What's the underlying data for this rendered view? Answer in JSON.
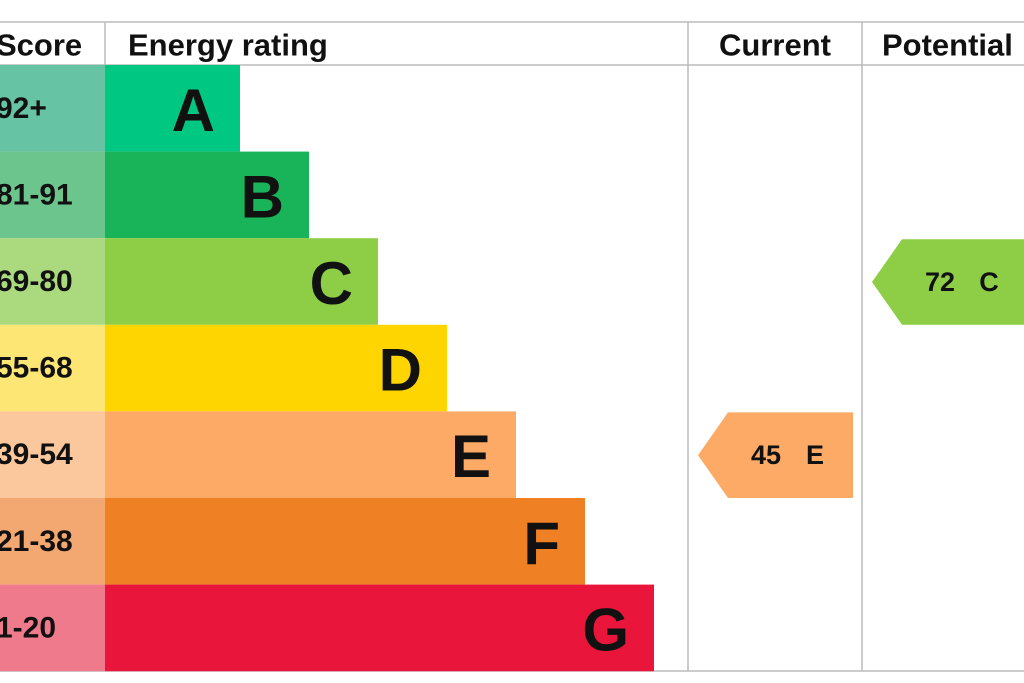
{
  "header": {
    "score": "Score",
    "energy_rating": "Energy rating",
    "current": "Current",
    "potential": "Potential"
  },
  "bands": [
    {
      "score": "92+",
      "letter": "A",
      "color": "#00c781",
      "score_color": "#66c3a3"
    },
    {
      "score": "81-91",
      "letter": "B",
      "color": "#19b459",
      "score_color": "#6dc58e"
    },
    {
      "score": "69-80",
      "letter": "C",
      "color": "#8dce46",
      "score_color": "#aad97e"
    },
    {
      "score": "55-68",
      "letter": "D",
      "color": "#ffd500",
      "score_color": "#fde674"
    },
    {
      "score": "39-54",
      "letter": "E",
      "color": "#fcaa65",
      "score_color": "#fbc79d"
    },
    {
      "score": "21-38",
      "letter": "F",
      "color": "#ef8023",
      "score_color": "#f3a872"
    },
    {
      "score": "1-20",
      "letter": "G",
      "color": "#e9153b",
      "score_color": "#ef7a8c"
    }
  ],
  "current": {
    "value": 45,
    "band": "E"
  },
  "potential": {
    "value": 72,
    "band": "C"
  }
}
